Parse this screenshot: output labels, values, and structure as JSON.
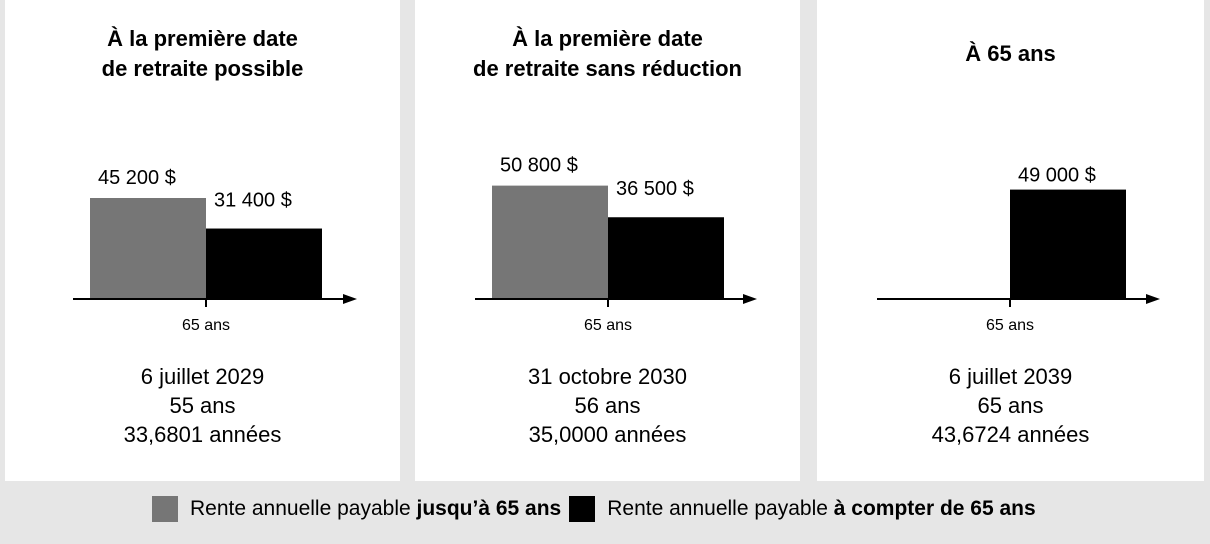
{
  "colors": {
    "before_65": "#767676",
    "after_65": "#000000",
    "background": "#e6e6e6"
  },
  "chart_data": [
    {
      "type": "bar",
      "title": "À la première date de retraite possible",
      "title_lines": [
        "À la première date",
        "de retraite possible"
      ],
      "tick_label": "65 ans",
      "values": [
        45200,
        31400
      ],
      "value_labels": [
        "45 200 $",
        "31 400 $"
      ],
      "info": [
        "6 juillet 2029",
        "55 ans",
        "33,6801 années"
      ]
    },
    {
      "type": "bar",
      "title": "À la première date de retraite sans réduction",
      "title_lines": [
        "À la première date",
        "de retraite sans réduction"
      ],
      "tick_label": "65 ans",
      "values": [
        50800,
        36500
      ],
      "value_labels": [
        "50 800 $",
        "36 500 $"
      ],
      "info": [
        "31 octobre 2030",
        "56 ans",
        "35,0000 années"
      ]
    },
    {
      "type": "bar",
      "title": "À 65 ans",
      "title_lines": [
        "À 65 ans",
        ""
      ],
      "tick_label": "65 ans",
      "values": [
        0,
        49000
      ],
      "value_labels": [
        "",
        "49 000 $"
      ],
      "info": [
        "6 juillet 2039",
        "65 ans",
        "43,6724 années"
      ]
    }
  ],
  "legend": {
    "item1": {
      "prefix": "Rente annuelle payable ",
      "bold": "jusqu’à 65 ans"
    },
    "item2": {
      "prefix": "Rente annuelle payable ",
      "bold": "à compter de 65 ans"
    }
  }
}
